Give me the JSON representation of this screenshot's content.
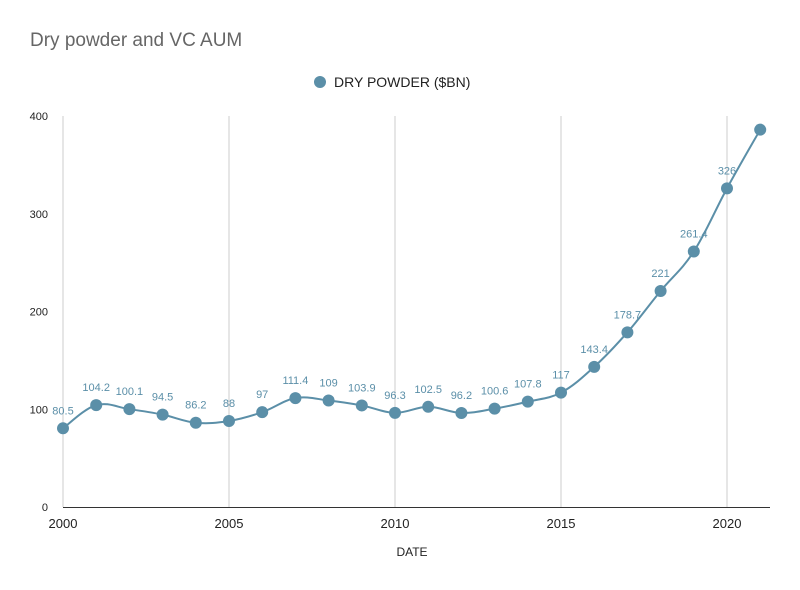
{
  "chart_data": {
    "type": "line",
    "title": "Dry powder and VC AUM",
    "xlabel": "DATE",
    "ylabel": "",
    "legend": {
      "position": "top",
      "entries": [
        "DRY POWDER ($BN)"
      ]
    },
    "xlim": [
      2000,
      2021
    ],
    "ylim": [
      0,
      400
    ],
    "x_ticks": [
      2000,
      2005,
      2010,
      2015,
      2020
    ],
    "y_ticks": [
      0,
      100,
      200,
      300,
      400
    ],
    "grid": {
      "vertical": true,
      "horizontal": false
    },
    "series": [
      {
        "name": "DRY POWDER ($BN)",
        "color": "#5b8fa8",
        "x": [
          2000,
          2001,
          2002,
          2003,
          2004,
          2005,
          2006,
          2007,
          2008,
          2009,
          2010,
          2011,
          2012,
          2013,
          2014,
          2015,
          2016,
          2017,
          2018,
          2019,
          2020,
          2021
        ],
        "values": [
          80.5,
          104.2,
          100.1,
          94.5,
          86.2,
          88,
          97,
          111.4,
          109,
          103.9,
          96.3,
          102.5,
          96.2,
          100.6,
          107.8,
          117,
          143.4,
          178.7,
          221,
          261.4,
          326,
          386
        ],
        "labels": [
          "80.5",
          "104.2",
          "100.1",
          "94.5",
          "86.2",
          "88",
          "97",
          "111.4",
          "109",
          "103.9",
          "96.3",
          "102.5",
          "96.2",
          "100.6",
          "107.8",
          "117",
          "143.4",
          "178.7",
          "221",
          "261.4",
          "326",
          ""
        ]
      }
    ]
  }
}
